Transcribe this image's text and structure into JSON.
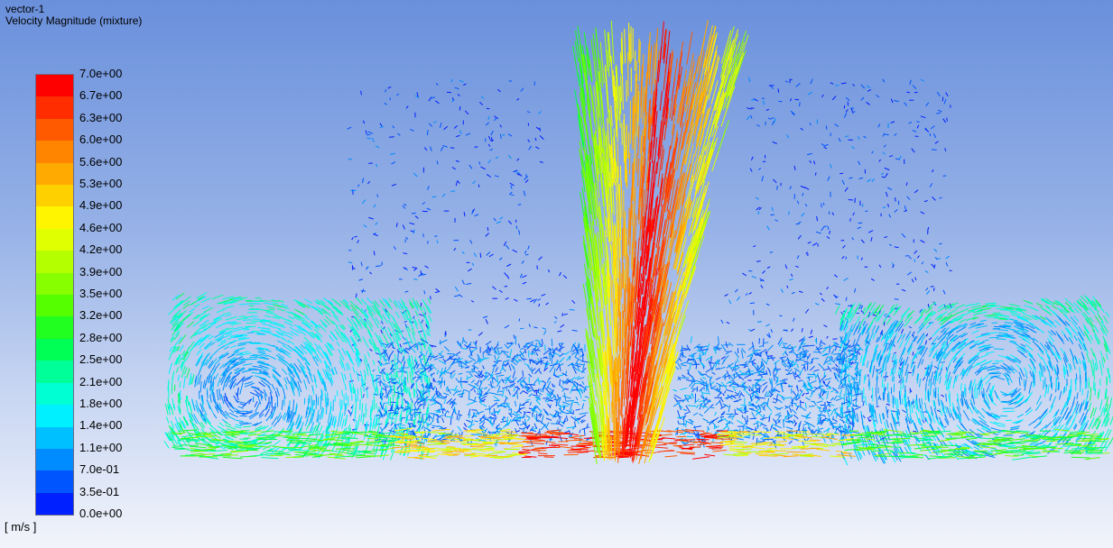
{
  "plot": {
    "name": "vector-1",
    "quantity": "Velocity Magnitude (mixture)",
    "unit": "[ m/s ]"
  },
  "legend": {
    "tick_labels": [
      "7.0e+00",
      "6.7e+00",
      "6.3e+00",
      "6.0e+00",
      "5.6e+00",
      "5.3e+00",
      "4.9e+00",
      "4.6e+00",
      "4.2e+00",
      "3.9e+00",
      "3.5e+00",
      "3.2e+00",
      "2.8e+00",
      "2.5e+00",
      "2.1e+00",
      "1.8e+00",
      "1.4e+00",
      "1.1e+00",
      "7.0e-01",
      "3.5e-01",
      "0.0e+00"
    ],
    "band_colors": [
      "#ff0000",
      "#ff2d00",
      "#ff5a00",
      "#ff8400",
      "#ffaa00",
      "#ffd000",
      "#fff500",
      "#e0ff00",
      "#b4ff00",
      "#87ff00",
      "#55ff00",
      "#20ff20",
      "#00ff55",
      "#00ff99",
      "#00ffd2",
      "#00f0ff",
      "#00c0ff",
      "#008cff",
      "#0055ff",
      "#0020ff"
    ]
  },
  "colors": {
    "background_top": "#6a90dc",
    "background_bottom": "#f2f4fb"
  }
}
